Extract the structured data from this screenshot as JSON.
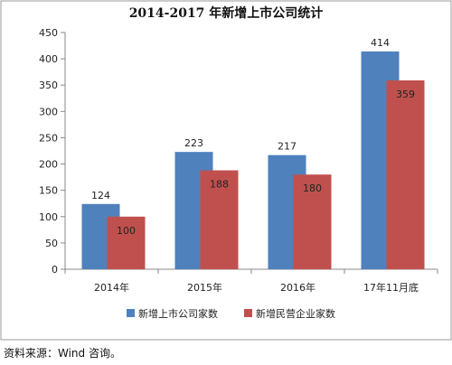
{
  "chart_data": {
    "type": "bar",
    "title": "2014-2017 年新增上市公司统计",
    "categories": [
      "2014年",
      "2015年",
      "2016年",
      "17年11月底"
    ],
    "series": [
      {
        "name": "新增上市公司家数",
        "values": [
          124,
          223,
          217,
          414
        ],
        "color": "#4f81bd"
      },
      {
        "name": "新增民营企业家数",
        "values": [
          100,
          188,
          180,
          359
        ],
        "color": "#c0504d"
      }
    ],
    "ylim": [
      0,
      450
    ],
    "yticks": [
      0,
      50,
      100,
      150,
      200,
      250,
      300,
      350,
      400,
      450
    ],
    "grid": false,
    "legend_position": "bottom",
    "xlabel": "",
    "ylabel": ""
  },
  "source_note": "资料来源：Wind 咨询。"
}
